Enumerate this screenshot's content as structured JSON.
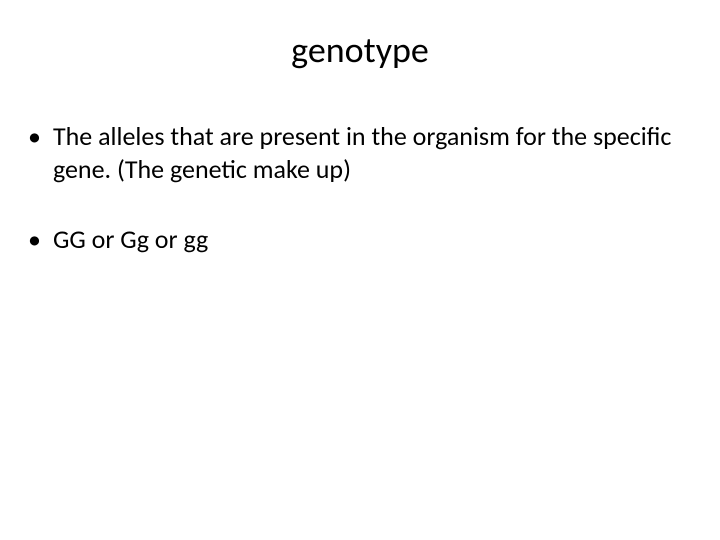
{
  "slide": {
    "title": "genotype",
    "bullets": [
      {
        "text": "The alleles that are present in the organism for the specific gene. (The genetic make up)"
      },
      {
        "text": "GG or Gg or gg"
      }
    ],
    "title_fontsize": 36,
    "body_fontsize": 26,
    "text_color": "#000000",
    "background_color": "#ffffff",
    "font_family": "Calibri"
  }
}
